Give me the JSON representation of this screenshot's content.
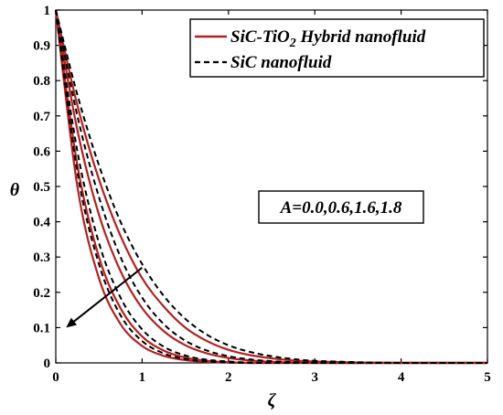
{
  "chart_data": {
    "type": "line",
    "title": "",
    "xlabel": "ζ",
    "ylabel": "θ",
    "xlim": [
      0,
      5
    ],
    "ylim": [
      0,
      1
    ],
    "xticks": [
      "0",
      "1",
      "2",
      "3",
      "4",
      "5"
    ],
    "yticks": [
      "0",
      "0.1",
      "0.2",
      "0.3",
      "0.4",
      "0.5",
      "0.6",
      "0.7",
      "0.8",
      "0.9",
      "1"
    ],
    "grid": false,
    "legend_position": "top-right",
    "legend": [
      {
        "label_main": "SiC-TiO",
        "label_sub": "2",
        "label_tail": " Hybrid nanofluid",
        "color": "#b22222",
        "style": "solid"
      },
      {
        "label_main": "SiC nanofluid",
        "label_sub": "",
        "label_tail": "",
        "color": "#000000",
        "style": "dashed"
      }
    ],
    "annotation": "A=0.0,0.6,1.6,1.8",
    "x": [
      0,
      0.25,
      0.5,
      0.75,
      1,
      1.25,
      1.5,
      1.75,
      2,
      2.25,
      2.5,
      2.75,
      3,
      3.5,
      4,
      4.5,
      5
    ],
    "series": [
      {
        "group": "SiC-TiO2 Hybrid nanofluid",
        "A": "0.0",
        "values": [
          1,
          0.73,
          0.52,
          0.36,
          0.24,
          0.16,
          0.1,
          0.062,
          0.037,
          0.022,
          0.013,
          0.007,
          0.004,
          0.001,
          0,
          0,
          0
        ]
      },
      {
        "group": "SiC-TiO2 Hybrid nanofluid",
        "A": "0.6",
        "values": [
          1,
          0.66,
          0.42,
          0.26,
          0.155,
          0.09,
          0.05,
          0.027,
          0.014,
          0.007,
          0.003,
          0.001,
          0,
          0,
          0,
          0,
          0
        ]
      },
      {
        "group": "SiC-TiO2 Hybrid nanofluid",
        "A": "1.6",
        "values": [
          1,
          0.56,
          0.3,
          0.155,
          0.075,
          0.035,
          0.015,
          0.006,
          0.002,
          0,
          0,
          0,
          0,
          0,
          0,
          0,
          0
        ]
      },
      {
        "group": "SiC-TiO2 Hybrid nanofluid",
        "A": "1.8",
        "values": [
          1,
          0.5,
          0.24,
          0.11,
          0.048,
          0.02,
          0.008,
          0.003,
          0.001,
          0,
          0,
          0,
          0,
          0,
          0,
          0,
          0
        ]
      },
      {
        "group": "SiC nanofluid",
        "A": "0.0",
        "values": [
          1,
          0.76,
          0.56,
          0.4,
          0.28,
          0.19,
          0.125,
          0.08,
          0.05,
          0.031,
          0.019,
          0.011,
          0.006,
          0.002,
          0,
          0,
          0
        ]
      },
      {
        "group": "SiC nanofluid",
        "A": "0.6",
        "values": [
          1,
          0.7,
          0.47,
          0.3,
          0.185,
          0.11,
          0.063,
          0.035,
          0.019,
          0.01,
          0.005,
          0.002,
          0.001,
          0,
          0,
          0,
          0
        ]
      },
      {
        "group": "SiC nanofluid",
        "A": "1.6",
        "values": [
          1,
          0.6,
          0.34,
          0.185,
          0.095,
          0.046,
          0.021,
          0.009,
          0.004,
          0.001,
          0,
          0,
          0,
          0,
          0,
          0,
          0
        ]
      },
      {
        "group": "SiC nanofluid",
        "A": "1.8",
        "values": [
          1,
          0.54,
          0.28,
          0.135,
          0.062,
          0.027,
          0.011,
          0.004,
          0.001,
          0,
          0,
          0,
          0,
          0,
          0,
          0,
          0
        ]
      }
    ],
    "arrow": {
      "from": [
        1.0,
        0.27
      ],
      "to": [
        0.12,
        0.1
      ]
    }
  }
}
